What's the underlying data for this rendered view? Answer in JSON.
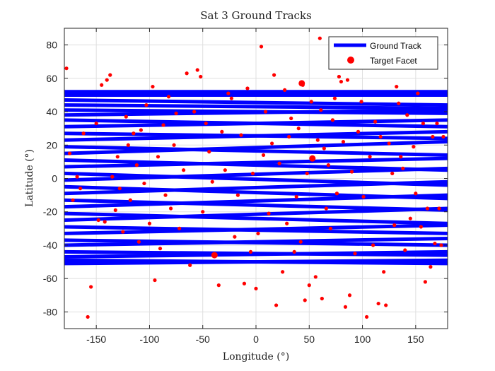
{
  "chart_data": {
    "type": "scatter",
    "title": "Sat 3 Ground Tracks",
    "xlabel": "Longitude (°)",
    "ylabel": "Latitude (°)",
    "xlim": [
      -180,
      180
    ],
    "ylim": [
      -90,
      90
    ],
    "xticks": [
      -150,
      -100,
      -50,
      0,
      50,
      100,
      150
    ],
    "yticks": [
      -80,
      -60,
      -40,
      -20,
      0,
      20,
      40,
      60,
      80
    ],
    "grid": true,
    "legend_position": "top-right",
    "colors": {
      "track": "#0000ff",
      "target": "#ff0000"
    },
    "series": [
      {
        "name": "Ground Track",
        "kind": "line",
        "lines": [
          [
            [
              -180,
              52
            ],
            [
              180,
              52
            ]
          ],
          [
            [
              -180,
              50
            ],
            [
              180,
              50
            ]
          ],
          [
            [
              -180,
              47
            ],
            [
              180,
              44
            ]
          ],
          [
            [
              -180,
              44
            ],
            [
              180,
              42
            ]
          ],
          [
            [
              -180,
              41
            ],
            [
              180,
              39
            ]
          ],
          [
            [
              -180,
              38
            ],
            [
              180,
              41
            ]
          ],
          [
            [
              -180,
              35
            ],
            [
              180,
              31
            ]
          ],
          [
            [
              -180,
              31
            ],
            [
              180,
              35
            ]
          ],
          [
            [
              -180,
              27
            ],
            [
              180,
              24
            ]
          ],
          [
            [
              -180,
              23
            ],
            [
              180,
              28
            ]
          ],
          [
            [
              -180,
              19
            ],
            [
              180,
              14
            ]
          ],
          [
            [
              -180,
              15
            ],
            [
              180,
              22
            ]
          ],
          [
            [
              -180,
              11
            ],
            [
              180,
              5
            ]
          ],
          [
            [
              -180,
              7
            ],
            [
              180,
              12
            ]
          ],
          [
            [
              -180,
              3
            ],
            [
              180,
              -4
            ]
          ],
          [
            [
              -180,
              -1
            ],
            [
              180,
              6
            ]
          ],
          [
            [
              -180,
              -5
            ],
            [
              180,
              -12
            ]
          ],
          [
            [
              -180,
              -9
            ],
            [
              180,
              -2
            ]
          ],
          [
            [
              -180,
              -13
            ],
            [
              180,
              -19
            ]
          ],
          [
            [
              -180,
              -17
            ],
            [
              180,
              -10
            ]
          ],
          [
            [
              -180,
              -21
            ],
            [
              180,
              -27
            ]
          ],
          [
            [
              -180,
              -25
            ],
            [
              180,
              -18
            ]
          ],
          [
            [
              -180,
              -29
            ],
            [
              180,
              -33
            ]
          ],
          [
            [
              -180,
              -33
            ],
            [
              180,
              -28
            ]
          ],
          [
            [
              -180,
              -37
            ],
            [
              180,
              -40
            ]
          ],
          [
            [
              -180,
              -40
            ],
            [
              180,
              -36
            ]
          ],
          [
            [
              -180,
              -44
            ],
            [
              180,
              -46
            ]
          ],
          [
            [
              -180,
              -47
            ],
            [
              180,
              -44
            ]
          ],
          [
            [
              -180,
              -49
            ],
            [
              180,
              -51
            ]
          ],
          [
            [
              -180,
              -51
            ],
            [
              180,
              -49
            ]
          ]
        ]
      },
      {
        "name": "Target Facet",
        "kind": "scatter",
        "points": [
          [
            -178,
            66
          ],
          [
            -175,
            15
          ],
          [
            -172,
            -13
          ],
          [
            -168,
            1
          ],
          [
            -165,
            -6
          ],
          [
            -162,
            27
          ],
          [
            -158,
            -83
          ],
          [
            -155,
            -65
          ],
          [
            -150,
            33
          ],
          [
            -148,
            -25
          ],
          [
            -145,
            56
          ],
          [
            -142,
            -26
          ],
          [
            -140,
            59
          ],
          [
            -137,
            62
          ],
          [
            -135,
            1
          ],
          [
            -132,
            -19
          ],
          [
            -130,
            13
          ],
          [
            -128,
            -6
          ],
          [
            -125,
            -32
          ],
          [
            -122,
            37
          ],
          [
            -120,
            20
          ],
          [
            -118,
            -13
          ],
          [
            -115,
            27
          ],
          [
            -112,
            8
          ],
          [
            -110,
            -38
          ],
          [
            -108,
            29
          ],
          [
            -105,
            -3
          ],
          [
            -103,
            44
          ],
          [
            -100,
            -27
          ],
          [
            -97,
            55
          ],
          [
            -95,
            -61
          ],
          [
            -92,
            13
          ],
          [
            -90,
            -42
          ],
          [
            -87,
            32
          ],
          [
            -85,
            -10
          ],
          [
            -82,
            49
          ],
          [
            -80,
            -18
          ],
          [
            -77,
            20
          ],
          [
            -75,
            39
          ],
          [
            -72,
            -30
          ],
          [
            -68,
            5
          ],
          [
            -65,
            63
          ],
          [
            -62,
            -52
          ],
          [
            -58,
            40
          ],
          [
            -55,
            65
          ],
          [
            -52,
            61
          ],
          [
            -50,
            -20
          ],
          [
            -47,
            33
          ],
          [
            -44,
            16
          ],
          [
            -41,
            -2
          ],
          [
            -38,
            -46
          ],
          [
            -35,
            -64
          ],
          [
            -32,
            28
          ],
          [
            -29,
            5
          ],
          [
            -26,
            51
          ],
          [
            -23,
            48
          ],
          [
            -20,
            -35
          ],
          [
            -17,
            -10
          ],
          [
            -14,
            26
          ],
          [
            -11,
            -63
          ],
          [
            -8,
            54
          ],
          [
            -5,
            -44
          ],
          [
            -3,
            3
          ],
          [
            0,
            -66
          ],
          [
            2,
            -33
          ],
          [
            5,
            79
          ],
          [
            7,
            14
          ],
          [
            9,
            40
          ],
          [
            12,
            -21
          ],
          [
            15,
            21
          ],
          [
            17,
            62
          ],
          [
            19,
            -76
          ],
          [
            22,
            9
          ],
          [
            25,
            -56
          ],
          [
            27,
            53
          ],
          [
            29,
            -27
          ],
          [
            31,
            25
          ],
          [
            33,
            36
          ],
          [
            36,
            -44
          ],
          [
            38,
            -11
          ],
          [
            40,
            30
          ],
          [
            42,
            -38
          ],
          [
            44,
            56
          ],
          [
            46,
            -73
          ],
          [
            48,
            3
          ],
          [
            50,
            -64
          ],
          [
            52,
            46
          ],
          [
            54,
            12
          ],
          [
            56,
            -59
          ],
          [
            58,
            23
          ],
          [
            60,
            84
          ],
          [
            61,
            41
          ],
          [
            62,
            -72
          ],
          [
            64,
            18
          ],
          [
            66,
            -18
          ],
          [
            68,
            8
          ],
          [
            70,
            -30
          ],
          [
            72,
            35
          ],
          [
            74,
            48
          ],
          [
            76,
            -9
          ],
          [
            78,
            61
          ],
          [
            80,
            58
          ],
          [
            82,
            22
          ],
          [
            84,
            -77
          ],
          [
            86,
            59
          ],
          [
            88,
            -70
          ],
          [
            90,
            4
          ],
          [
            93,
            -45
          ],
          [
            96,
            28
          ],
          [
            99,
            46
          ],
          [
            101,
            -11
          ],
          [
            104,
            -83
          ],
          [
            107,
            13
          ],
          [
            110,
            -40
          ],
          [
            112,
            34
          ],
          [
            115,
            -75
          ],
          [
            117,
            25
          ],
          [
            120,
            -56
          ],
          [
            122,
            -76
          ],
          [
            125,
            21
          ],
          [
            128,
            3
          ],
          [
            130,
            -28
          ],
          [
            132,
            55
          ],
          [
            134,
            45
          ],
          [
            136,
            13
          ],
          [
            138,
            6
          ],
          [
            140,
            -43
          ],
          [
            142,
            38
          ],
          [
            145,
            -24
          ],
          [
            148,
            19
          ],
          [
            150,
            -9
          ],
          [
            152,
            51
          ],
          [
            155,
            -29
          ],
          [
            157,
            33
          ],
          [
            159,
            -62
          ],
          [
            161,
            -18
          ],
          [
            164,
            -53
          ],
          [
            166,
            25
          ],
          [
            168,
            -39
          ],
          [
            170,
            33
          ],
          [
            172,
            -18
          ],
          [
            174,
            -40
          ],
          [
            176,
            25
          ]
        ],
        "large_points": [
          [
            43,
            57
          ],
          [
            53,
            12
          ],
          [
            -39,
            -46
          ]
        ]
      }
    ]
  }
}
